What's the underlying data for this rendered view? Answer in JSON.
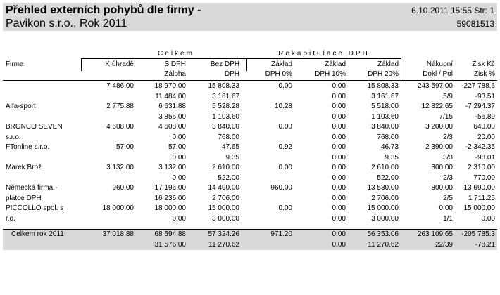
{
  "report": {
    "title": "Přehled externích pohybů  dle firmy  -",
    "subtitle": "Pavikon s.r.o., Rok 2011",
    "datetime": "6.10.2011 15:55 Str: 1",
    "code": "59081513"
  },
  "groups": {
    "celkem": "Celkem",
    "rekapitulace": "Rekapitulace DPH"
  },
  "columns": {
    "firma": "Firma",
    "k_uhrade": "K úhradě",
    "s_dph": "S DPH",
    "zaloha": "Záloha",
    "bez_dph": "Bez DPH",
    "dph": "DPH",
    "zaklad0_a": "Základ",
    "zaklad0_b": "DPH 0%",
    "zaklad10_a": "Základ",
    "zaklad10_b": "DPH 10%",
    "zaklad20_a": "Základ",
    "zaklad20_b": "DPH 20%",
    "nakupni_a": "Nákupní",
    "nakupni_b": "Dokl / Pol",
    "zisk_a": "Zisk Kč",
    "zisk_b": "Zisk %"
  },
  "rows": [
    {
      "name1": "",
      "name2": "",
      "a": [
        "7 486.00",
        "18 970.00",
        "15 808.33",
        "0.00",
        "0.00",
        "15 808.33",
        "243 597.00",
        "-227 788.6"
      ],
      "b": [
        "",
        "11 484.00",
        "3 161.67",
        "",
        "0.00",
        "3 161.67",
        "5/9",
        "-93.51"
      ]
    },
    {
      "name1": "Alfa-sport",
      "name2": "",
      "a": [
        "2 775.88",
        "6 631.88",
        "5 528.28",
        "10.28",
        "0.00",
        "5 518.00",
        "12 822.65",
        "-7 294.37"
      ],
      "b": [
        "",
        "3 856.00",
        "1 103.60",
        "",
        "0.00",
        "1 103.60",
        "7/15",
        "-56.89"
      ]
    },
    {
      "name1": "BRONCO SEVEN",
      "name2": "s.r.o.",
      "a": [
        "4 608.00",
        "4 608.00",
        "3 840.00",
        "0.00",
        "0.00",
        "3 840.00",
        "3 200.00",
        "640.00"
      ],
      "b": [
        "",
        "0.00",
        "768.00",
        "",
        "0.00",
        "768.00",
        "2/3",
        "20.00"
      ]
    },
    {
      "name1": "FTonline s.r.o.",
      "name2": "",
      "a": [
        "57.00",
        "57.00",
        "47.65",
        "0.92",
        "0.00",
        "46.73",
        "2 390.00",
        "-2 342.35"
      ],
      "b": [
        "",
        "0.00",
        "9.35",
        "",
        "0.00",
        "9.35",
        "3/3",
        "-98.01"
      ]
    },
    {
      "name1": "Marek Brož",
      "name2": "",
      "a": [
        "3 132.00",
        "3 132.00",
        "2 610.00",
        "0.00",
        "0.00",
        "2 610.00",
        "300.00",
        "2 310.00"
      ],
      "b": [
        "",
        "0.00",
        "522.00",
        "",
        "0.00",
        "522.00",
        "2/3",
        "770.00"
      ]
    },
    {
      "name1": "Německá firma -",
      "name2": "plátce DPH",
      "a": [
        "960.00",
        "17 196.00",
        "14 490.00",
        "960.00",
        "0.00",
        "13 530.00",
        "800.00",
        "13 690.00"
      ],
      "b": [
        "",
        "16 236.00",
        "2 706.00",
        "",
        "0.00",
        "2 706.00",
        "2/5",
        "1 711.25"
      ]
    },
    {
      "name1": "PICCOLLO spol. s",
      "name2": "r.o.",
      "a": [
        "18 000.00",
        "18 000.00",
        "15 000.00",
        "0.00",
        "0.00",
        "15 000.00",
        "0.00",
        "15 000.00"
      ],
      "b": [
        "",
        "0.00",
        "3 000.00",
        "",
        "0.00",
        "3 000.00",
        "1/1",
        "0.00"
      ]
    }
  ],
  "total": {
    "name": "Celkem rok 2011",
    "a": [
      "37 018.88",
      "68 594.88",
      "57 324.26",
      "971.20",
      "0.00",
      "56 353.06",
      "263 109.65",
      "-205 785.3"
    ],
    "b": [
      "",
      "31 576.00",
      "11 270.62",
      "",
      "0.00",
      "11 270.62",
      "22/39",
      "-78.21"
    ]
  }
}
